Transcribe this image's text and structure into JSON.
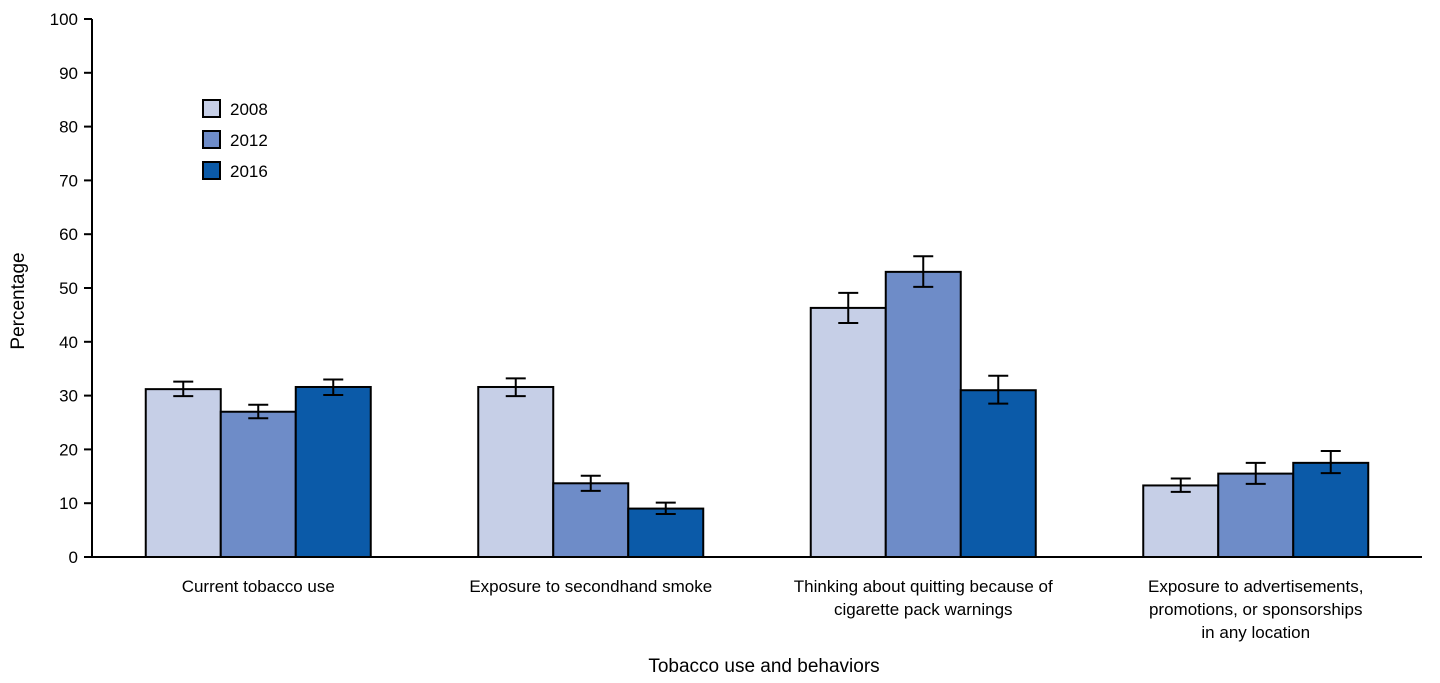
{
  "chart_data": {
    "type": "bar",
    "xlabel": "Tobacco use and behaviors",
    "ylabel": "Percentage",
    "ylim": [
      0,
      100
    ],
    "yticks": [
      0,
      10,
      20,
      30,
      40,
      50,
      60,
      70,
      80,
      90,
      100
    ],
    "grid": false,
    "legend_position": "top-left",
    "categories": [
      [
        "Current tobacco use"
      ],
      [
        "Exposure to secondhand smoke"
      ],
      [
        "Thinking about quitting because of",
        "cigarette pack warnings"
      ],
      [
        "Exposure to advertisements,",
        "promotions, or sponsorships",
        "in any location"
      ]
    ],
    "series": [
      {
        "name": "2008",
        "color": "#c6cfe7",
        "values": [
          31.2,
          31.6,
          46.3,
          13.3
        ],
        "error_low": [
          29.9,
          29.9,
          43.5,
          12.1
        ],
        "error_high": [
          32.6,
          33.2,
          49.1,
          14.6
        ]
      },
      {
        "name": "2012",
        "color": "#6e8cc8",
        "values": [
          27.0,
          13.7,
          53.0,
          15.5
        ],
        "error_low": [
          25.8,
          12.3,
          50.2,
          13.6
        ],
        "error_high": [
          28.3,
          15.1,
          55.9,
          17.5
        ]
      },
      {
        "name": "2016",
        "color": "#0b5aa8",
        "values": [
          31.6,
          9.0,
          31.0,
          17.5
        ],
        "error_low": [
          30.1,
          8.0,
          28.5,
          15.6
        ],
        "error_high": [
          33.0,
          10.1,
          33.7,
          19.7
        ]
      }
    ]
  }
}
